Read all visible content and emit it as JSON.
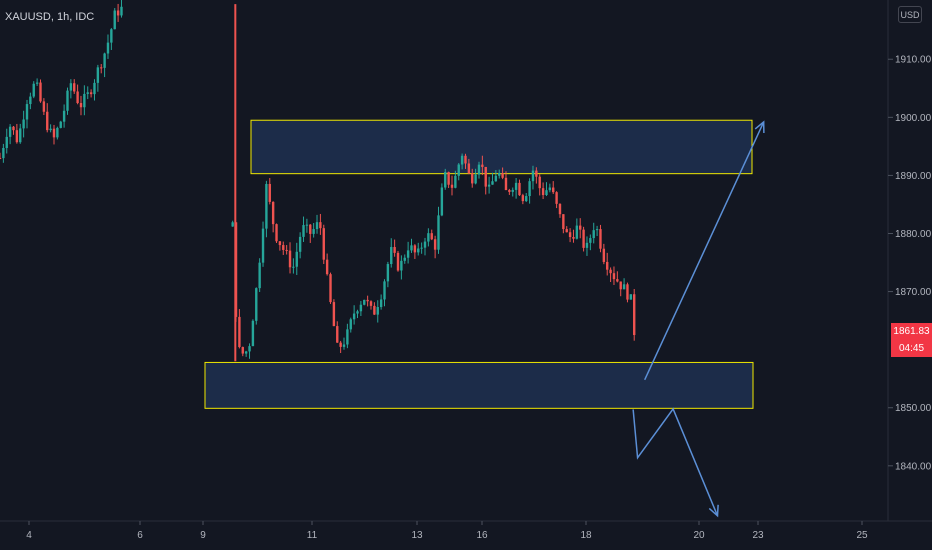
{
  "chart_data": {
    "type": "candlestick",
    "symbol": "XAUUSD, 1h, IDC",
    "currency": "USD",
    "last_price": "1861.83",
    "countdown": "04:45",
    "y_ticks": [
      1910,
      1900,
      1890,
      1880,
      1870,
      1850,
      1840
    ],
    "y_tick_labels": [
      "1910.00",
      "1900.00",
      "1890.00",
      "1880.00",
      "1870.00",
      "1850.00",
      "1840.00"
    ],
    "ylim": [
      1830.5,
      1920.2
    ],
    "x_ticks": [
      "4",
      "6",
      "9",
      "11",
      "13",
      "16",
      "18",
      "20",
      "23",
      "25"
    ],
    "zones": [
      {
        "y_low": 1890.3,
        "y_high": 1899.5,
        "color": "#1e3050"
      },
      {
        "y_low": 1849.9,
        "y_high": 1857.8,
        "color": "#1e3050"
      }
    ],
    "projection_paths": [
      [
        [
          0.726,
          1854.8
        ],
        [
          0.86,
          1899.2
        ]
      ],
      [
        [
          0.713,
          1849.7
        ],
        [
          0.718,
          1841.4
        ],
        [
          0.758,
          1849.8
        ],
        [
          0.808,
          1831.4
        ]
      ]
    ],
    "price_path": [
      [
        0.0,
        1893
      ],
      [
        0.01,
        1899
      ],
      [
        0.02,
        1896
      ],
      [
        0.03,
        1903
      ],
      [
        0.04,
        1906
      ],
      [
        0.05,
        1900
      ],
      [
        0.06,
        1896
      ],
      [
        0.07,
        1900
      ],
      [
        0.08,
        1906
      ],
      [
        0.09,
        1902
      ],
      [
        0.1,
        1904
      ],
      [
        0.11,
        1908
      ],
      [
        0.12,
        1912
      ],
      [
        0.13,
        1918
      ],
      [
        0.14,
        1919
      ],
      [
        0.255,
        1920
      ],
      [
        0.26,
        1890
      ],
      [
        0.265,
        1868
      ],
      [
        0.27,
        1859
      ],
      [
        0.28,
        1860
      ],
      [
        0.29,
        1872
      ],
      [
        0.3,
        1888
      ],
      [
        0.31,
        1880
      ],
      [
        0.32,
        1877
      ],
      [
        0.33,
        1874
      ],
      [
        0.34,
        1881
      ],
      [
        0.35,
        1880
      ],
      [
        0.36,
        1882
      ],
      [
        0.37,
        1870
      ],
      [
        0.38,
        1860
      ],
      [
        0.39,
        1862
      ],
      [
        0.4,
        1867
      ],
      [
        0.41,
        1869
      ],
      [
        0.42,
        1866
      ],
      [
        0.43,
        1870
      ],
      [
        0.44,
        1877
      ],
      [
        0.45,
        1874
      ],
      [
        0.46,
        1878
      ],
      [
        0.47,
        1876
      ],
      [
        0.48,
        1880
      ],
      [
        0.49,
        1878
      ],
      [
        0.5,
        1890
      ],
      [
        0.51,
        1888
      ],
      [
        0.52,
        1894
      ],
      [
        0.53,
        1889
      ],
      [
        0.54,
        1893
      ],
      [
        0.55,
        1887
      ],
      [
        0.56,
        1891
      ],
      [
        0.57,
        1887
      ],
      [
        0.58,
        1889
      ],
      [
        0.59,
        1886
      ],
      [
        0.6,
        1891
      ],
      [
        0.61,
        1887
      ],
      [
        0.62,
        1888
      ],
      [
        0.63,
        1883
      ],
      [
        0.64,
        1879
      ],
      [
        0.65,
        1881
      ],
      [
        0.66,
        1877
      ],
      [
        0.67,
        1882
      ],
      [
        0.68,
        1876
      ],
      [
        0.69,
        1873
      ],
      [
        0.7,
        1871
      ],
      [
        0.71,
        1869
      ],
      [
        0.715,
        1862
      ]
    ]
  }
}
